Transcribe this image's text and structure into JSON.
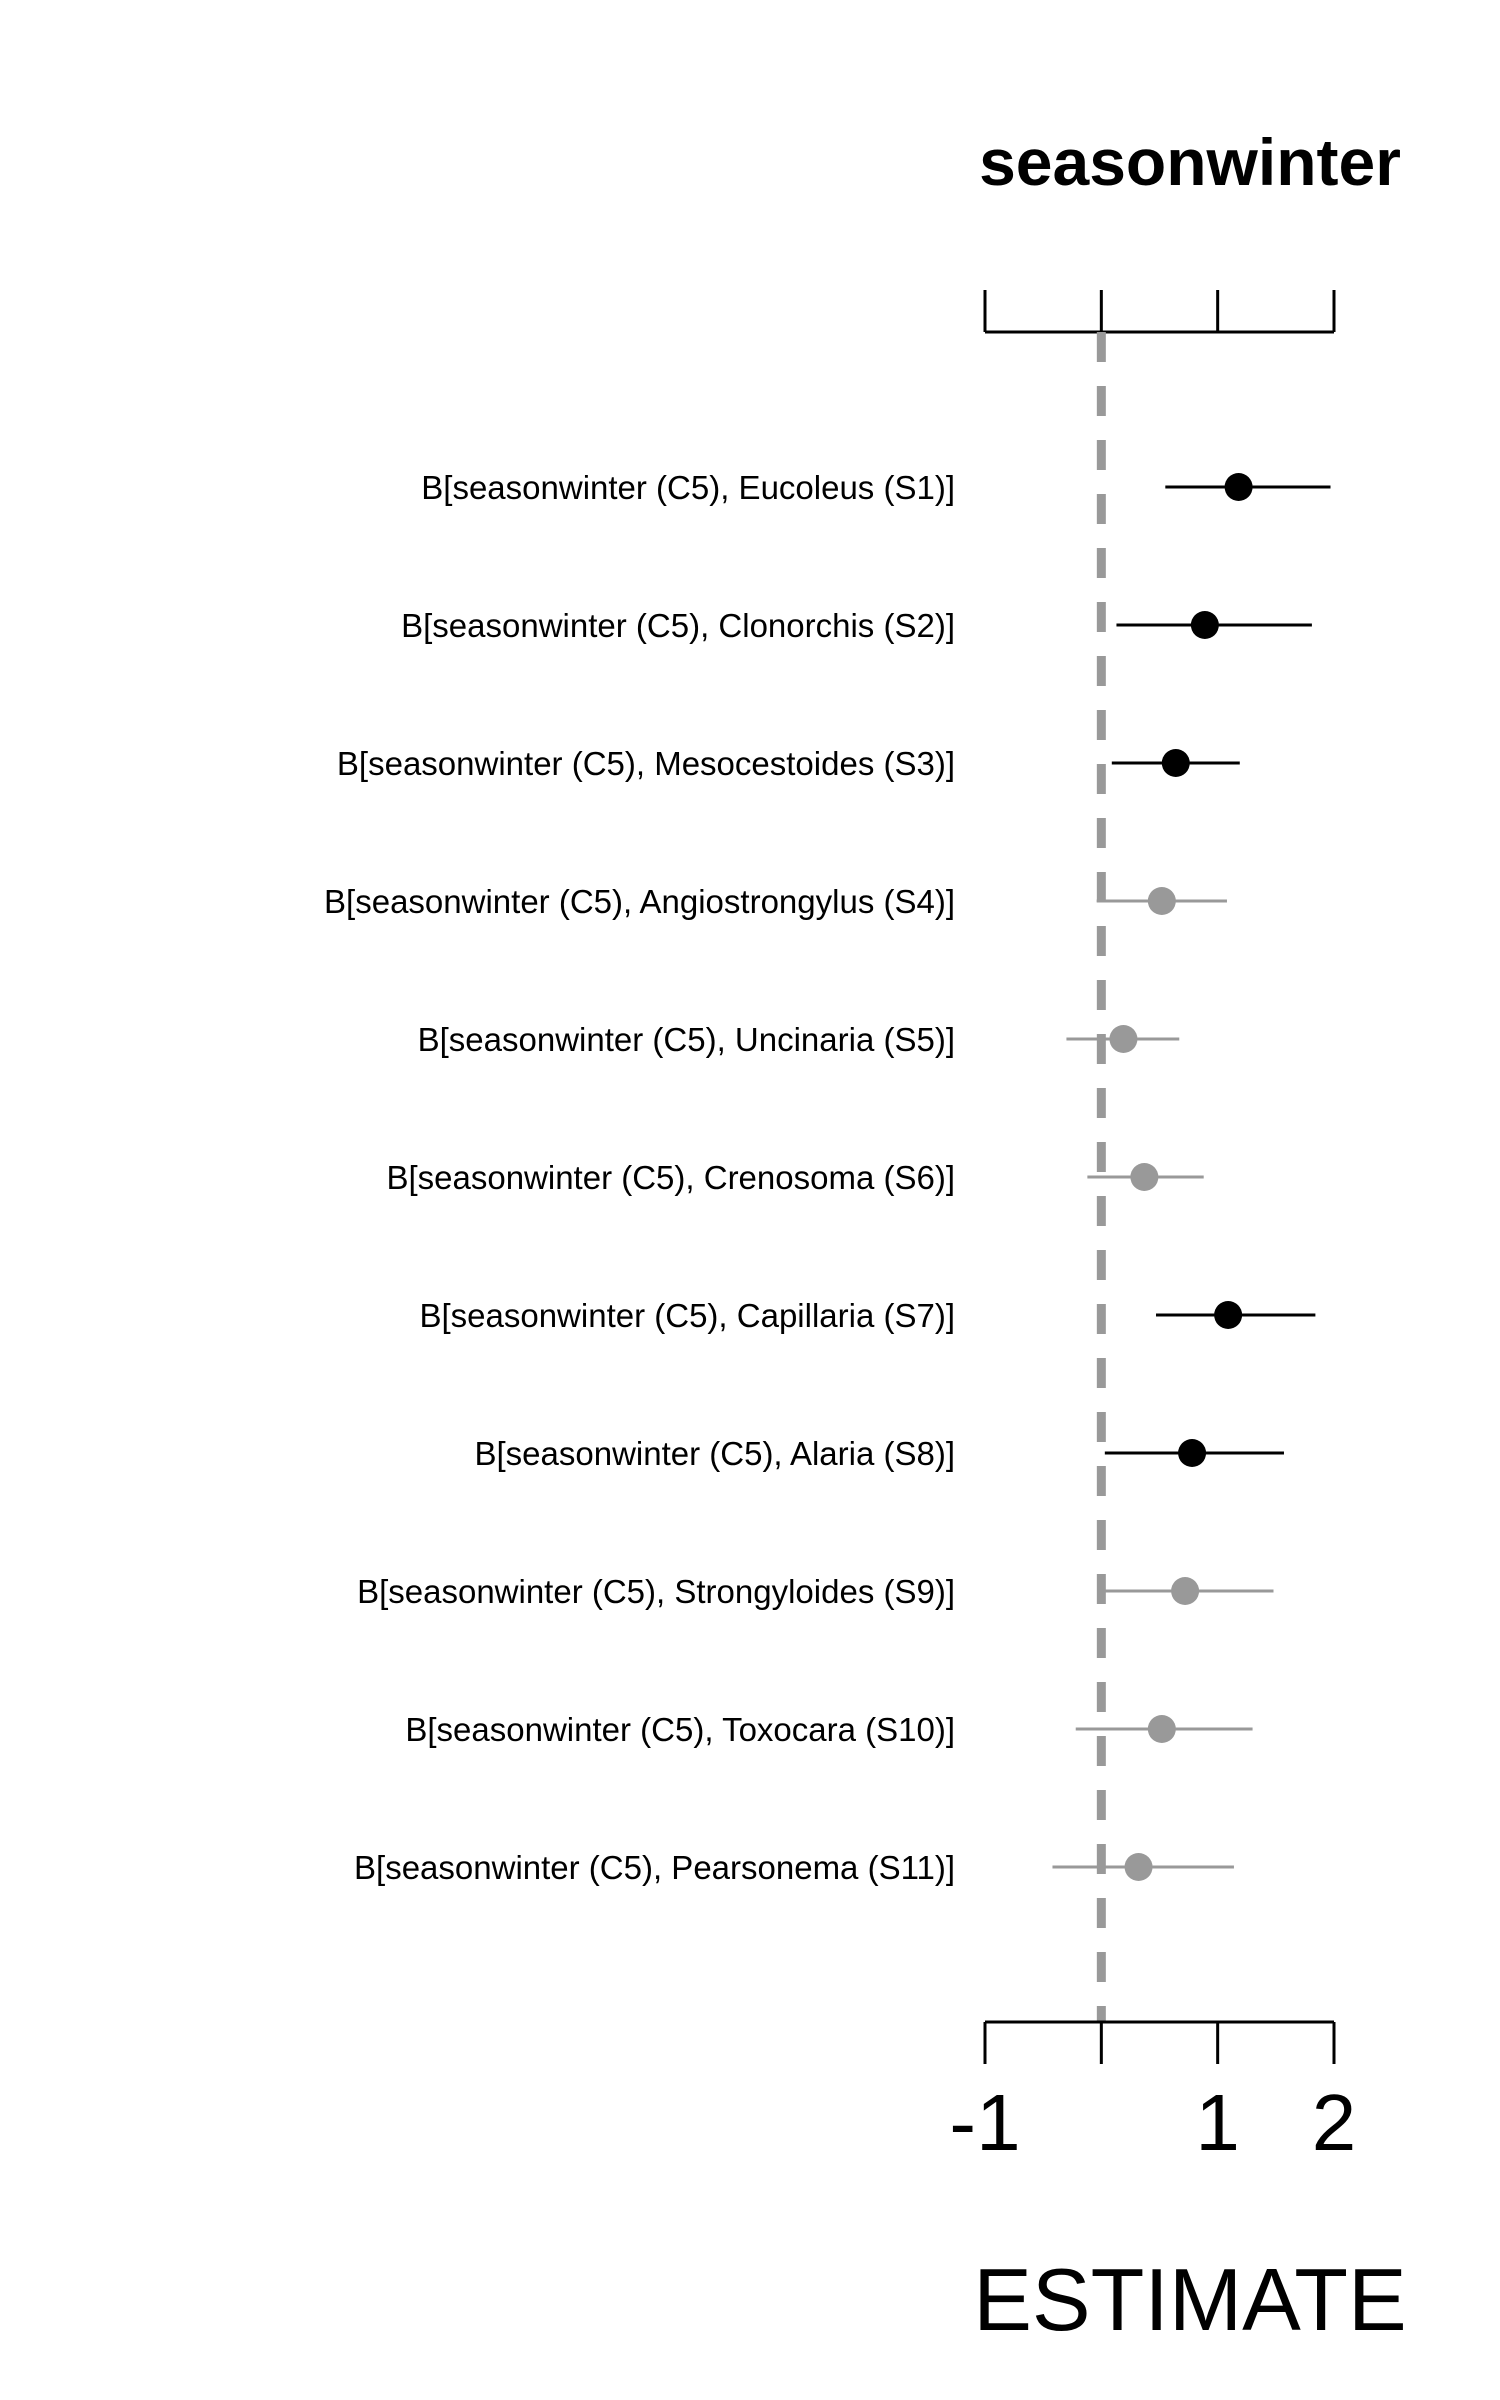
{
  "chart_data": {
    "type": "scatter",
    "subtype": "forest-plot",
    "title": "seasonwinter",
    "xlabel": "ESTIMATE",
    "ylabel": "",
    "xlim": [
      -1,
      2
    ],
    "xticks": [
      -1,
      0,
      1,
      2
    ],
    "xtick_labels": [
      "-1",
      "",
      "1",
      "2"
    ],
    "reference_line": 0,
    "grid": false,
    "colors": {
      "significant": "#000000",
      "nonsignificant": "#999999",
      "reference": "#999999"
    },
    "rows": [
      {
        "label": "B[seasonwinter (C5), Eucoleus (S1)]",
        "estimate": 1.18,
        "lower": 0.55,
        "upper": 1.97,
        "significant": true
      },
      {
        "label": "B[seasonwinter (C5), Clonorchis (S2)]",
        "estimate": 0.89,
        "lower": 0.13,
        "upper": 1.81,
        "significant": true
      },
      {
        "label": "B[seasonwinter (C5), Mesocestoides (S3)]",
        "estimate": 0.64,
        "lower": 0.09,
        "upper": 1.19,
        "significant": true
      },
      {
        "label": "B[seasonwinter (C5), Angiostrongylus (S4)]",
        "estimate": 0.52,
        "lower": -0.04,
        "upper": 1.08,
        "significant": false
      },
      {
        "label": "B[seasonwinter (C5), Uncinaria (S5)]",
        "estimate": 0.19,
        "lower": -0.3,
        "upper": 0.67,
        "significant": false
      },
      {
        "label": "B[seasonwinter (C5), Crenosoma (S6)]",
        "estimate": 0.37,
        "lower": -0.12,
        "upper": 0.88,
        "significant": false
      },
      {
        "label": "B[seasonwinter (C5), Capillaria (S7)]",
        "estimate": 1.09,
        "lower": 0.47,
        "upper": 1.84,
        "significant": true
      },
      {
        "label": "B[seasonwinter (C5), Alaria (S8)]",
        "estimate": 0.78,
        "lower": 0.03,
        "upper": 1.57,
        "significant": true
      },
      {
        "label": "B[seasonwinter (C5), Strongyloides (S9)]",
        "estimate": 0.72,
        "lower": -0.02,
        "upper": 1.48,
        "significant": false
      },
      {
        "label": "B[seasonwinter (C5), Toxocara (S10)]",
        "estimate": 0.52,
        "lower": -0.22,
        "upper": 1.3,
        "significant": false
      },
      {
        "label": "B[seasonwinter (C5), Pearsonema (S11)]",
        "estimate": 0.32,
        "lower": -0.42,
        "upper": 1.14,
        "significant": false
      }
    ]
  }
}
